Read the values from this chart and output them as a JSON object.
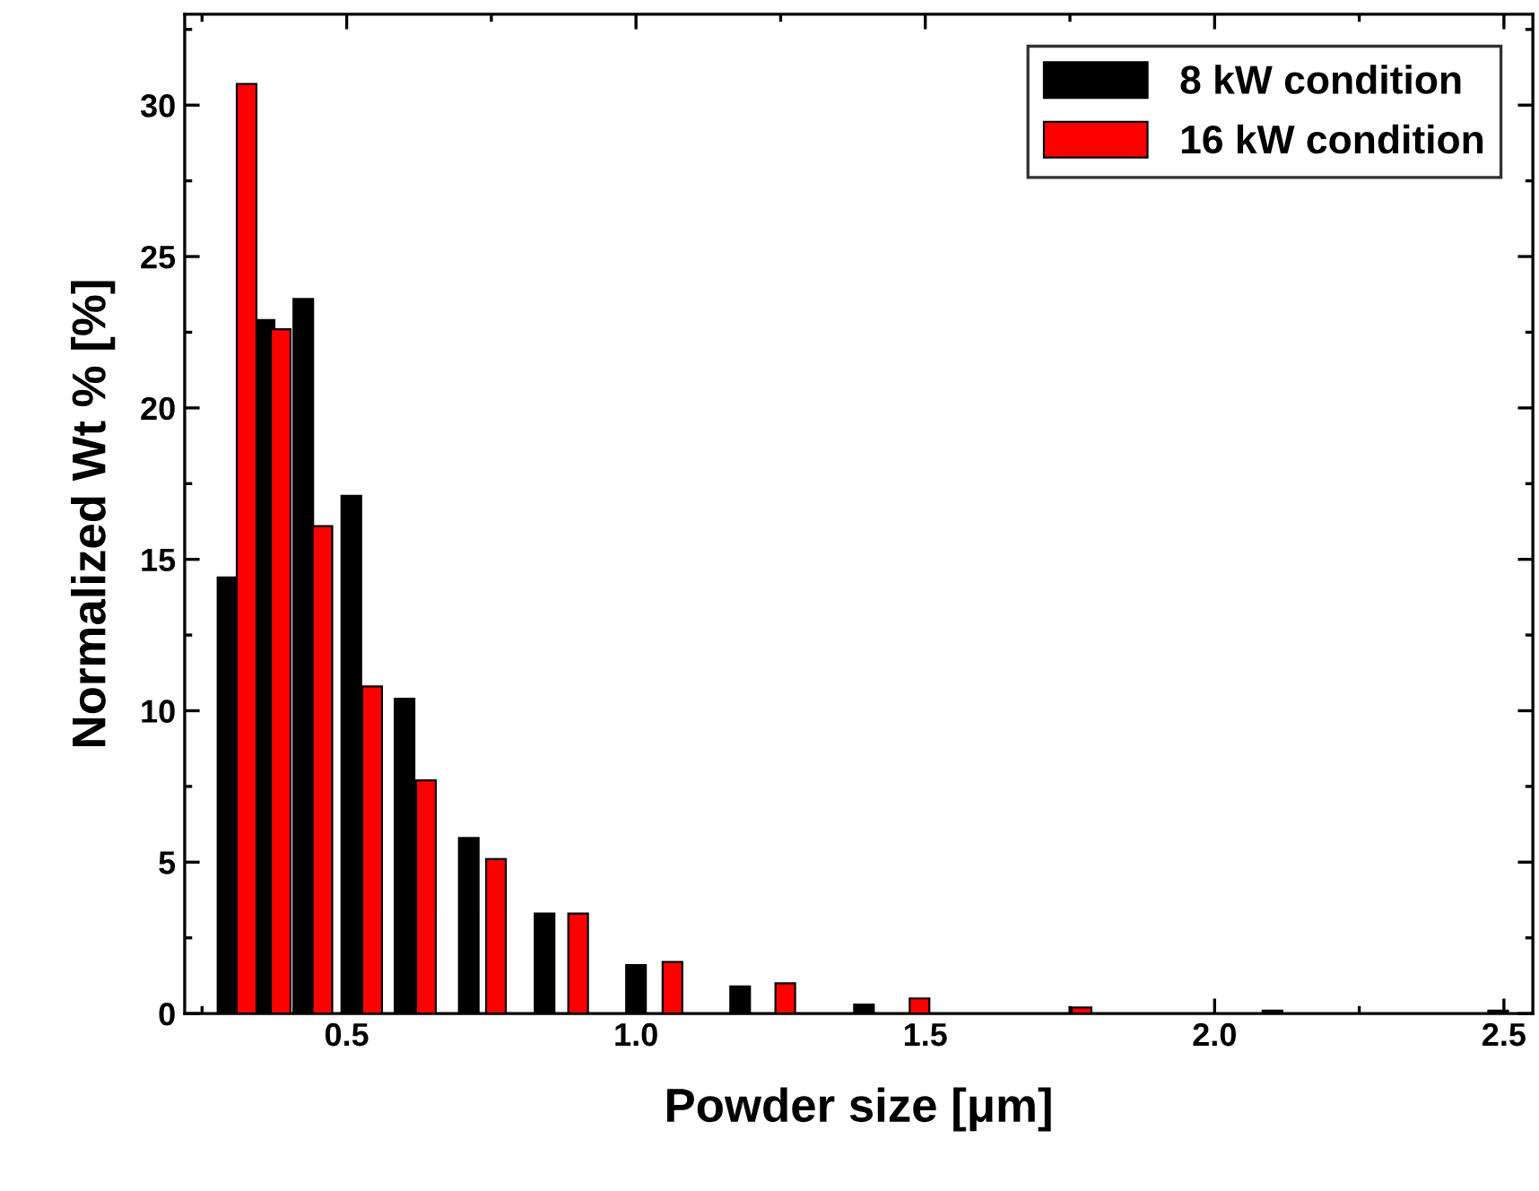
{
  "chart_data": {
    "type": "bar",
    "xlabel": "Powder size [μm]",
    "ylabel": "Normalized Wt % [%]",
    "xlim": [
      0.22,
      2.55
    ],
    "xticks": [
      {
        "value": 0.5,
        "label": "0.5"
      },
      {
        "value": 1.0,
        "label": "1.0"
      },
      {
        "value": 1.5,
        "label": "1.5"
      },
      {
        "value": 2.0,
        "label": "2.0"
      },
      {
        "value": 2.5,
        "label": "2.5"
      }
    ],
    "ylim": [
      0,
      33
    ],
    "yticks": [
      0,
      5,
      10,
      15,
      20,
      25,
      30
    ],
    "legend": "top right",
    "grid": false,
    "series": [
      {
        "name": "8 kW condition",
        "color": "#000000",
        "x": [
          0.294,
          0.358,
          0.425,
          0.508,
          0.6,
          0.711,
          0.842,
          1.0,
          1.18,
          1.394,
          2.1,
          2.49
        ],
        "values": [
          14.4,
          22.9,
          23.6,
          17.1,
          10.4,
          5.8,
          3.3,
          1.6,
          0.9,
          0.3,
          0.1,
          0.1
        ]
      },
      {
        "name": "16 kW condition",
        "color": "#ff0000",
        "x": [
          0.327,
          0.386,
          0.458,
          0.544,
          0.637,
          0.758,
          0.9,
          1.063,
          1.258,
          1.49,
          1.77
        ],
        "values": [
          30.7,
          22.6,
          16.1,
          10.8,
          7.7,
          5.1,
          3.3,
          1.7,
          1.0,
          0.5,
          0.2
        ]
      }
    ]
  }
}
